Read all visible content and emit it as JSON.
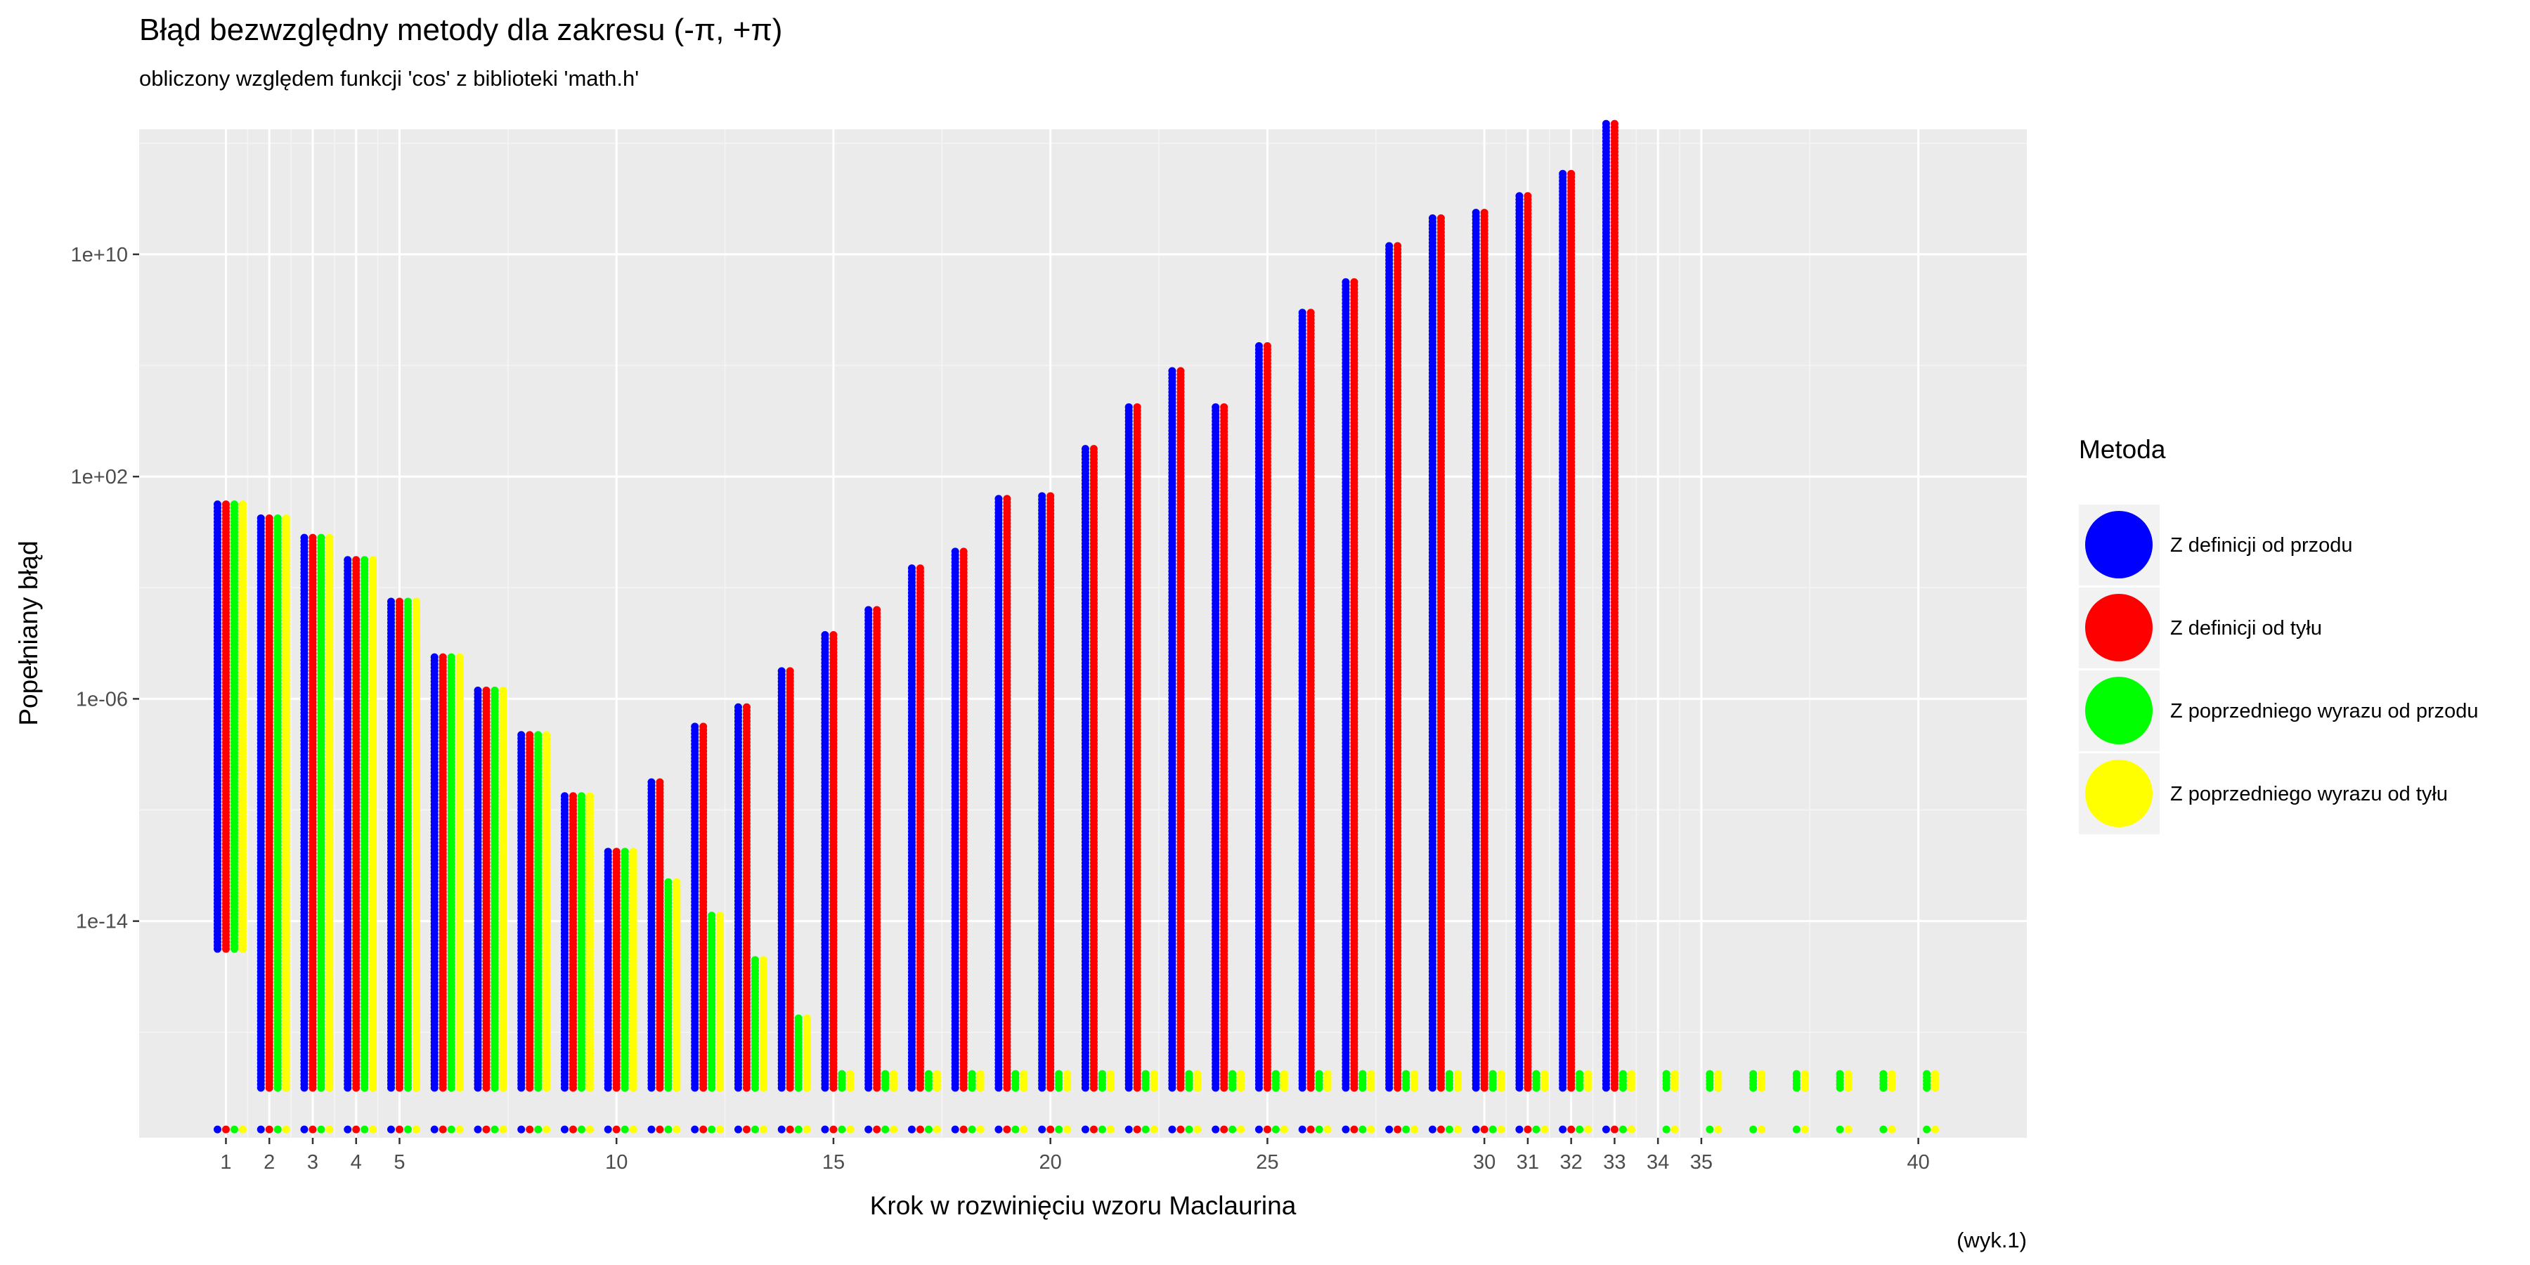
{
  "chart_data": {
    "type": "scatter",
    "title": "Błąd bezwzględny metody dla zakresu (-π, +π)",
    "subtitle": "obliczony względem funkcji 'cos' z biblioteki 'math.h'",
    "xlabel": "Krok w rozwinięciu wzoru Maclaurina",
    "ylabel": "Popełniany błąd",
    "caption": "(wyk.1)",
    "y_scale": "log10",
    "xlim": [
      -1.0,
      42.5
    ],
    "ylim_log10": [
      -21.8,
      14.5
    ],
    "x_ticks": [
      1,
      2,
      3,
      4,
      5,
      10,
      15,
      20,
      25,
      30,
      31,
      32,
      33,
      34,
      35,
      40
    ],
    "y_ticks": [
      {
        "label": "1e-14",
        "log10": -14
      },
      {
        "label": "1e-06",
        "log10": -6
      },
      {
        "label": "1e+02",
        "log10": 2
      },
      {
        "label": "1e+10",
        "log10": 10
      }
    ],
    "grid": true,
    "legend": {
      "title": "Metoda",
      "position": "right",
      "entries": [
        {
          "label": "Z definicji od przodu",
          "color": "#0000ff"
        },
        {
          "label": "Z definicji od tyłu",
          "color": "#ff0000"
        },
        {
          "label": "Z poprzedniego wyrazu od przodu",
          "color": "#00ff00"
        },
        {
          "label": "Z poprzedniego wyrazu od tyłu",
          "color": "#ffff00"
        }
      ]
    },
    "series": [
      {
        "name": "Z definicji od przodu",
        "color": "#0000ff",
        "max_error_log10": [
          1.0,
          0.5,
          -0.2,
          -1.0,
          -2.5,
          -4.5,
          -5.7,
          -7.3,
          -9.5,
          -11.5,
          -9.0,
          -7.0,
          -6.3,
          -5.0,
          -3.7,
          -2.8,
          -1.3,
          -0.7,
          1.2,
          1.3,
          3.0,
          4.5,
          5.8,
          4.5,
          6.7,
          7.9,
          9.0,
          10.3,
          11.3,
          11.5,
          12.1,
          12.9,
          14.7
        ],
        "min_error_log10": [
          -15.0,
          -20.0,
          -20.0,
          -20.0,
          -20.0,
          -20.0,
          -20.0,
          -20.0,
          -20.0,
          -20.0,
          -20.0,
          -20.0,
          -20.0,
          -20.0,
          -20.0,
          -20.0,
          -20.0,
          -20.0,
          -20.0,
          -20.0,
          -20.0,
          -20.0,
          -20.0,
          -20.0,
          -20.0,
          -20.0,
          -20.0,
          -20.0,
          -20.0,
          -20.0,
          -20.0,
          -20.0,
          -20.0
        ]
      },
      {
        "name": "Z definicji od tyłu",
        "color": "#ff0000",
        "max_error_log10": [
          1.0,
          0.5,
          -0.2,
          -1.0,
          -2.5,
          -4.5,
          -5.7,
          -7.3,
          -9.5,
          -11.5,
          -9.0,
          -7.0,
          -6.3,
          -5.0,
          -3.7,
          -2.8,
          -1.3,
          -0.7,
          1.2,
          1.3,
          3.0,
          4.5,
          5.8,
          4.5,
          6.7,
          7.9,
          9.0,
          10.3,
          11.3,
          11.5,
          12.1,
          12.9,
          14.7
        ],
        "min_error_log10": [
          -15.0,
          -20.0,
          -20.0,
          -20.0,
          -20.0,
          -20.0,
          -20.0,
          -20.0,
          -20.0,
          -20.0,
          -20.0,
          -20.0,
          -20.0,
          -20.0,
          -20.0,
          -20.0,
          -20.0,
          -20.0,
          -20.0,
          -20.0,
          -20.0,
          -20.0,
          -20.0,
          -20.0,
          -20.0,
          -20.0,
          -20.0,
          -20.0,
          -20.0,
          -20.0,
          -20.0,
          -20.0,
          -20.0
        ]
      },
      {
        "name": "Z poprzedniego wyrazu od przodu",
        "color": "#00ff00",
        "max_error_log10": [
          1.0,
          0.5,
          -0.2,
          -1.0,
          -2.5,
          -4.5,
          -5.7,
          -7.3,
          -9.5,
          -11.5,
          -12.6,
          -13.8,
          -15.4,
          -17.5,
          -19.5,
          -19.5,
          -19.5,
          -19.5,
          -19.5,
          -19.5,
          -19.5,
          -19.5,
          -19.5,
          -19.5,
          -19.5,
          -19.5,
          -19.5,
          -19.5,
          -19.5,
          -19.5,
          -19.5,
          -19.5,
          -19.5,
          -19.5,
          -19.5,
          -19.5,
          -19.5,
          -19.5,
          -19.5,
          -19.5
        ],
        "min_error_log10": [
          -15.0,
          -20.0,
          -20.0,
          -20.0,
          -20.0,
          -20.0,
          -20.0,
          -20.0,
          -20.0,
          -20.0,
          -20.0,
          -20.0,
          -20.0,
          -20.0,
          -20.0,
          -20.0,
          -20.0,
          -20.0,
          -20.0,
          -20.0,
          -20.0,
          -20.0,
          -20.0,
          -20.0,
          -20.0,
          -20.0,
          -20.0,
          -20.0,
          -20.0,
          -20.0,
          -20.0,
          -20.0,
          -20.0,
          -20.0,
          -20.0,
          -20.0,
          -20.0,
          -20.0,
          -20.0,
          -20.0
        ]
      },
      {
        "name": "Z poprzedniego wyrazu od tyłu",
        "color": "#ffff00",
        "max_error_log10": [
          1.0,
          0.5,
          -0.2,
          -1.0,
          -2.5,
          -4.5,
          -5.7,
          -7.3,
          -9.5,
          -11.5,
          -12.6,
          -13.8,
          -15.4,
          -17.5,
          -19.5,
          -19.5,
          -19.5,
          -19.5,
          -19.5,
          -19.5,
          -19.5,
          -19.5,
          -19.5,
          -19.5,
          -19.5,
          -19.5,
          -19.5,
          -19.5,
          -19.5,
          -19.5,
          -19.5,
          -19.5,
          -19.5,
          -19.5,
          -19.5,
          -19.5,
          -19.5,
          -19.5,
          -19.5,
          -19.5
        ],
        "min_error_log10": [
          -15.0,
          -20.0,
          -20.0,
          -20.0,
          -20.0,
          -20.0,
          -20.0,
          -20.0,
          -20.0,
          -20.0,
          -20.0,
          -20.0,
          -20.0,
          -20.0,
          -20.0,
          -20.0,
          -20.0,
          -20.0,
          -20.0,
          -20.0,
          -20.0,
          -20.0,
          -20.0,
          -20.0,
          -20.0,
          -20.0,
          -20.0,
          -20.0,
          -20.0,
          -20.0,
          -20.0,
          -20.0,
          -20.0,
          -20.0,
          -20.0,
          -20.0,
          -20.0,
          -20.0,
          -20.0,
          -20.0
        ]
      }
    ]
  }
}
